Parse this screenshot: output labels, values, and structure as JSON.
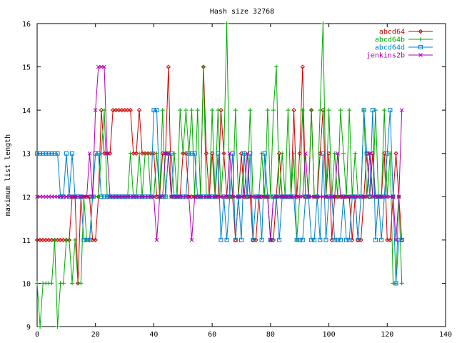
{
  "chart_data": {
    "type": "line",
    "title": "Hash size 32768",
    "xlabel": "",
    "ylabel": "maximum list length",
    "xlim": [
      0,
      140
    ],
    "ylim": [
      9,
      16
    ],
    "x_ticks": [
      0,
      20,
      40,
      60,
      80,
      100,
      120,
      140
    ],
    "y_ticks": [
      9,
      10,
      11,
      12,
      13,
      14,
      15,
      16
    ],
    "grid": false,
    "legend_position": "top-right",
    "series": [
      {
        "name": "abcd64",
        "color": "#cc0000",
        "marker": "diamond",
        "x": [
          0,
          1,
          2,
          3,
          4,
          5,
          6,
          7,
          8,
          9,
          10,
          11,
          12,
          13,
          14,
          15,
          16,
          17,
          18,
          19,
          20,
          21,
          22,
          23,
          24,
          25,
          26,
          27,
          28,
          29,
          30,
          31,
          32,
          33,
          34,
          35,
          36,
          37,
          38,
          39,
          40,
          41,
          42,
          43,
          44,
          45,
          46,
          47,
          48,
          49,
          50,
          51,
          52,
          53,
          54,
          55,
          56,
          57,
          58,
          59,
          60,
          61,
          62,
          63,
          64,
          65,
          66,
          67,
          68,
          69,
          70,
          71,
          72,
          73,
          74,
          75,
          76,
          77,
          78,
          79,
          80,
          81,
          82,
          83,
          84,
          85,
          86,
          87,
          88,
          89,
          90,
          91,
          92,
          93,
          94,
          95,
          96,
          97,
          98,
          99,
          100,
          101,
          102,
          103,
          104,
          105,
          106,
          107,
          108,
          109,
          110,
          111,
          112,
          113,
          114,
          115,
          116,
          117,
          118,
          119,
          120,
          121,
          122,
          123,
          124,
          125
        ],
        "y": [
          11,
          11,
          11,
          11,
          11,
          11,
          11,
          11,
          11,
          11,
          11,
          11,
          12,
          12,
          10,
          12,
          12,
          12,
          12,
          11,
          11,
          12,
          14,
          13,
          13,
          13,
          14,
          14,
          14,
          14,
          14,
          14,
          14,
          13,
          13,
          14,
          13,
          13,
          13,
          13,
          13,
          12,
          12,
          13,
          13,
          15,
          12,
          12,
          12,
          12,
          13,
          13,
          12,
          12,
          12,
          12,
          12,
          15,
          13,
          12,
          13,
          12,
          12,
          14,
          13,
          12,
          12,
          12,
          11,
          12,
          13,
          12,
          12,
          12,
          11,
          11,
          12,
          12,
          12,
          12,
          11,
          11,
          12,
          13,
          12,
          12,
          12,
          12,
          14,
          12,
          13,
          15,
          12,
          12,
          14,
          12,
          12,
          13,
          14,
          12,
          13,
          11,
          12,
          12,
          12,
          12,
          12,
          12,
          11,
          12,
          11,
          11,
          12,
          13,
          12,
          13,
          12,
          12,
          12,
          13,
          11,
          11,
          12,
          13,
          12,
          11
        ]
      },
      {
        "name": "abcd64b",
        "color": "#00aa00",
        "marker": "plus",
        "x": [
          0,
          1,
          2,
          3,
          4,
          5,
          6,
          7,
          8,
          9,
          10,
          11,
          12,
          13,
          14,
          15,
          16,
          17,
          18,
          19,
          20,
          21,
          22,
          23,
          24,
          25,
          26,
          27,
          28,
          29,
          30,
          31,
          32,
          33,
          34,
          35,
          36,
          37,
          38,
          39,
          40,
          41,
          42,
          43,
          44,
          45,
          46,
          47,
          48,
          49,
          50,
          51,
          52,
          53,
          54,
          55,
          56,
          57,
          58,
          59,
          60,
          61,
          62,
          63,
          64,
          65,
          66,
          67,
          68,
          69,
          70,
          71,
          72,
          73,
          74,
          75,
          76,
          77,
          78,
          79,
          80,
          81,
          82,
          83,
          84,
          85,
          86,
          87,
          88,
          89,
          90,
          91,
          92,
          93,
          94,
          95,
          96,
          97,
          98,
          99,
          100,
          101,
          102,
          103,
          104,
          105,
          106,
          107,
          108,
          109,
          110,
          111,
          112,
          113,
          114,
          115,
          116,
          117,
          118,
          119,
          120,
          121,
          122,
          123,
          124,
          125
        ],
        "y": [
          10,
          9,
          10,
          10,
          10,
          10,
          11,
          9,
          10,
          10,
          11,
          11,
          10,
          11,
          10,
          10,
          12,
          11,
          11,
          12,
          12,
          12,
          13,
          14,
          12,
          12,
          12,
          12,
          12,
          12,
          12,
          12,
          13,
          12,
          12,
          13,
          12,
          13,
          13,
          12,
          12,
          13,
          12,
          14,
          12,
          13,
          12,
          13,
          12,
          14,
          13,
          14,
          13,
          14,
          12,
          14,
          12,
          15,
          12,
          12,
          14,
          12,
          14,
          12,
          13,
          16,
          12,
          12,
          14,
          12,
          12,
          13,
          12,
          14,
          12,
          12,
          12,
          13,
          12,
          14,
          12,
          14,
          15,
          12,
          13,
          12,
          14,
          12,
          13,
          11,
          12,
          14,
          12,
          12,
          14,
          12,
          12,
          14,
          16,
          12,
          14,
          12,
          13,
          12,
          14,
          13,
          12,
          14,
          12,
          13,
          12,
          12,
          14,
          12,
          13,
          12,
          14,
          12,
          12,
          14,
          12,
          13,
          10,
          10,
          12,
          10
        ]
      },
      {
        "name": "abcd64d",
        "color": "#0080cc",
        "marker": "square",
        "x": [
          0,
          1,
          2,
          3,
          4,
          5,
          6,
          7,
          8,
          9,
          10,
          11,
          12,
          13,
          14,
          15,
          16,
          17,
          18,
          19,
          20,
          21,
          22,
          23,
          24,
          25,
          26,
          27,
          28,
          29,
          30,
          31,
          32,
          33,
          34,
          35,
          36,
          37,
          38,
          39,
          40,
          41,
          42,
          43,
          44,
          45,
          46,
          47,
          48,
          49,
          50,
          51,
          52,
          53,
          54,
          55,
          56,
          57,
          58,
          59,
          60,
          61,
          62,
          63,
          64,
          65,
          66,
          67,
          68,
          69,
          70,
          71,
          72,
          73,
          74,
          75,
          76,
          77,
          78,
          79,
          80,
          81,
          82,
          83,
          84,
          85,
          86,
          87,
          88,
          89,
          90,
          91,
          92,
          93,
          94,
          95,
          96,
          97,
          98,
          99,
          100,
          101,
          102,
          103,
          104,
          105,
          106,
          107,
          108,
          109,
          110,
          111,
          112,
          113,
          114,
          115,
          116,
          117,
          118,
          119,
          120,
          121,
          122,
          123,
          124,
          125
        ],
        "y": [
          13,
          13,
          13,
          13,
          13,
          13,
          13,
          13,
          12,
          12,
          13,
          12,
          13,
          12,
          12,
          12,
          11,
          11,
          11,
          12,
          13,
          13,
          12,
          12,
          12,
          12,
          12,
          12,
          12,
          12,
          12,
          12,
          12,
          12,
          12,
          12,
          12,
          12,
          12,
          12,
          14,
          14,
          12,
          12,
          12,
          13,
          13,
          12,
          12,
          12,
          12,
          12,
          13,
          13,
          13,
          12,
          12,
          12,
          12,
          12,
          12,
          12,
          13,
          11,
          12,
          11,
          12,
          13,
          11,
          12,
          11,
          13,
          12,
          13,
          11,
          12,
          12,
          11,
          13,
          12,
          11,
          12,
          12,
          11,
          12,
          12,
          12,
          12,
          12,
          11,
          11,
          11,
          12,
          12,
          11,
          11,
          12,
          11,
          13,
          11,
          12,
          12,
          11,
          11,
          11,
          12,
          11,
          11,
          12,
          12,
          11,
          12,
          14,
          13,
          12,
          14,
          11,
          12,
          11,
          12,
          13,
          14,
          12,
          10,
          11,
          11
        ]
      },
      {
        "name": "jenkins2b",
        "color": "#b000b0",
        "marker": "x",
        "x": [
          0,
          1,
          2,
          3,
          4,
          5,
          6,
          7,
          8,
          9,
          10,
          11,
          12,
          13,
          14,
          15,
          16,
          17,
          18,
          19,
          20,
          21,
          22,
          23,
          24,
          25,
          26,
          27,
          28,
          29,
          30,
          31,
          32,
          33,
          34,
          35,
          36,
          37,
          38,
          39,
          40,
          41,
          42,
          43,
          44,
          45,
          46,
          47,
          48,
          49,
          50,
          51,
          52,
          53,
          54,
          55,
          56,
          57,
          58,
          59,
          60,
          61,
          62,
          63,
          64,
          65,
          66,
          67,
          68,
          69,
          70,
          71,
          72,
          73,
          74,
          75,
          76,
          77,
          78,
          79,
          80,
          81,
          82,
          83,
          84,
          85,
          86,
          87,
          88,
          89,
          90,
          91,
          92,
          93,
          94,
          95,
          96,
          97,
          98,
          99,
          100,
          101,
          102,
          103,
          104,
          105,
          106,
          107,
          108,
          109,
          110,
          111,
          112,
          113,
          114,
          115,
          116,
          117,
          118,
          119,
          120,
          121,
          122,
          123,
          124,
          125
        ],
        "y": [
          12,
          12,
          12,
          12,
          12,
          12,
          12,
          12,
          12,
          12,
          12,
          12,
          12,
          12,
          12,
          12,
          12,
          12,
          13,
          12,
          14,
          15,
          15,
          15,
          13,
          12,
          12,
          12,
          12,
          12,
          12,
          12,
          12,
          12,
          12,
          12,
          12,
          12,
          12,
          12,
          12,
          11,
          12,
          12,
          13,
          13,
          12,
          12,
          12,
          12,
          12,
          12,
          12,
          11,
          12,
          12,
          12,
          12,
          12,
          12,
          12,
          12,
          12,
          12,
          12,
          12,
          13,
          12,
          12,
          12,
          12,
          12,
          13,
          12,
          12,
          12,
          12,
          12,
          12,
          12,
          11,
          12,
          12,
          12,
          12,
          12,
          12,
          12,
          12,
          12,
          12,
          12,
          13,
          12,
          12,
          12,
          12,
          12,
          12,
          12,
          12,
          12,
          12,
          13,
          12,
          12,
          12,
          12,
          12,
          12,
          12,
          12,
          12,
          12,
          13,
          12,
          12,
          12,
          12,
          12,
          12,
          12,
          12,
          11,
          12,
          14
        ]
      }
    ]
  }
}
